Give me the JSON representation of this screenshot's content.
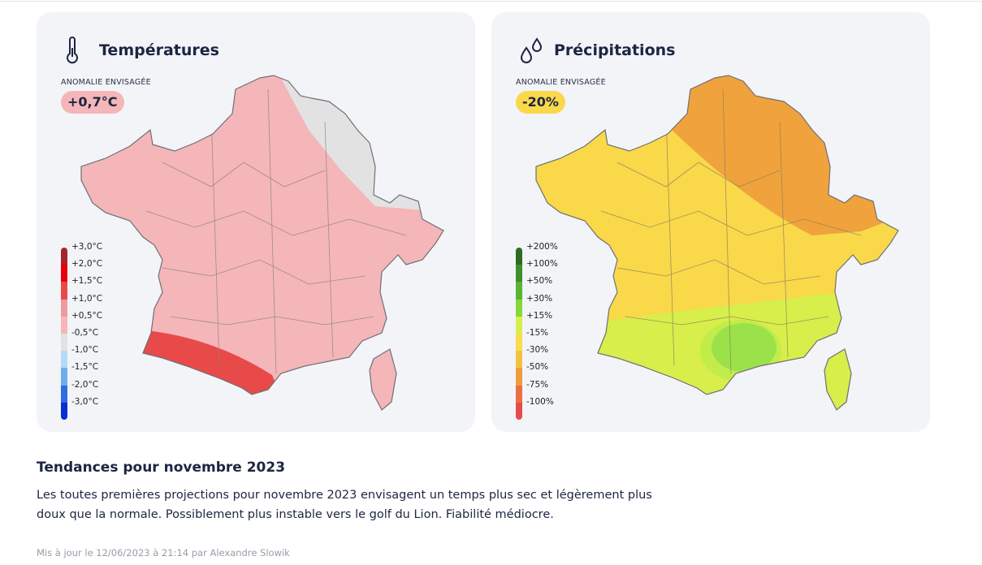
{
  "cards": [
    {
      "title": "Températures",
      "anomaly_label": "ANOMALIE ENVISAGÉE",
      "anomaly": "+0,7°C",
      "badge_color": "#f4b6b9",
      "legend": [
        {
          "label": "+3,0°C",
          "color": "#a3282c"
        },
        {
          "label": "+2,0°C",
          "color": "#e8000b"
        },
        {
          "label": "+1,5°C",
          "color": "#e84a4a"
        },
        {
          "label": "+1,0°C",
          "color": "#f09a9c"
        },
        {
          "label": "+0,5°C",
          "color": "#f4b6b9"
        },
        {
          "label": "-0,5°C",
          "color": "#e2e2e2"
        },
        {
          "label": "-1,0°C",
          "color": "#b2dcf4"
        },
        {
          "label": "-1,5°C",
          "color": "#6eaeea"
        },
        {
          "label": "-2,0°C",
          "color": "#2e6ee2"
        },
        {
          "label": "-3,0°C",
          "color": "#0b2fcf"
        }
      ]
    },
    {
      "title": "Précipitations",
      "anomaly_label": "ANOMALIE ENVISAGÉE",
      "anomaly": "-20%",
      "badge_color": "#f9d84a",
      "legend": [
        {
          "label": "+200%",
          "color": "#2f6b21"
        },
        {
          "label": "+100%",
          "color": "#3f8f2a"
        },
        {
          "label": "+50%",
          "color": "#57b532"
        },
        {
          "label": "+30%",
          "color": "#86d83a"
        },
        {
          "label": "+15%",
          "color": "#d8ee4a"
        },
        {
          "label": "-15%",
          "color": "#f9dd4c"
        },
        {
          "label": "-30%",
          "color": "#f4c242"
        },
        {
          "label": "-50%",
          "color": "#ef9e3a"
        },
        {
          "label": "-75%",
          "color": "#ea6f43"
        },
        {
          "label": "-100%",
          "color": "#e44b4b"
        }
      ]
    }
  ],
  "article": {
    "title": "Tendances pour novembre 2023",
    "text": "Les toutes premières projections pour novembre 2023 envisagent un temps plus sec et légèrement plus doux que la normale. Possiblement plus instable vers le golf du Lion. Fiabilité médiocre.",
    "updated": "Mis à jour le 12/06/2023 à 21:14 par Alexandre Slowik"
  }
}
